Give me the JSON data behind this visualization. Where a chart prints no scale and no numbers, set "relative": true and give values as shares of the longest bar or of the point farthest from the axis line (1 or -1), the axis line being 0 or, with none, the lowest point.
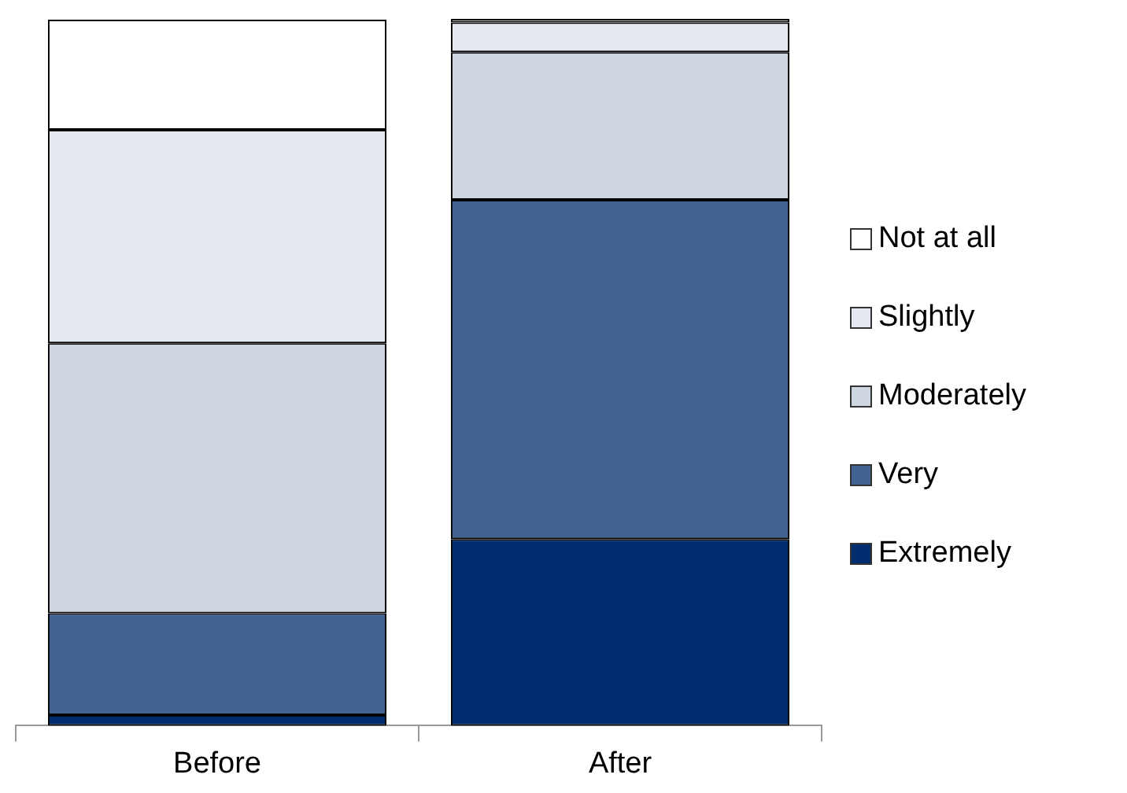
{
  "chart_data": {
    "type": "bar",
    "stacked": true,
    "relative": true,
    "categories": [
      "Before",
      "After"
    ],
    "legend": "right",
    "series": [
      {
        "name": "Extremely",
        "color": "#002d6e",
        "values": [
          0.015,
          0.264
        ]
      },
      {
        "name": "Very",
        "color": "#416293",
        "values": [
          0.144,
          0.48
        ]
      },
      {
        "name": "Moderately",
        "color": "#cdd6e1",
        "values": [
          0.382,
          0.209
        ]
      },
      {
        "name": "Slightly",
        "color": "#e4e9f1",
        "values": [
          0.302,
          0.042
        ]
      },
      {
        "name": "Not at all",
        "color": "#ffffff",
        "values": [
          0.156,
          0.005
        ]
      }
    ]
  }
}
